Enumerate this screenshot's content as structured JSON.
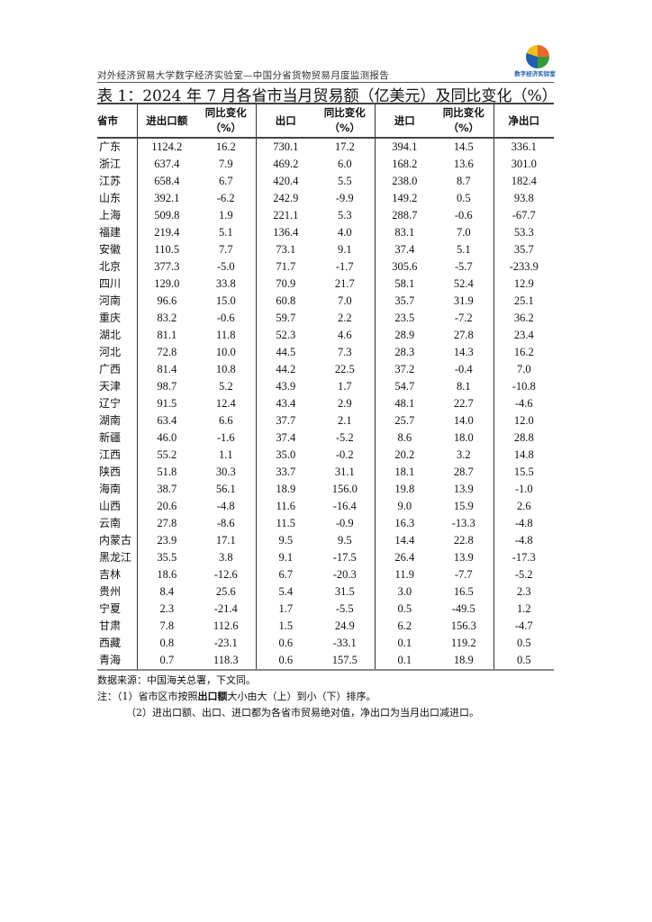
{
  "header": {
    "org": "对外经济贸易大学数字经济实验室—中国分省货物贸易月度监测报告",
    "logo_text": "数字经济实验室"
  },
  "title": "表 1：2024 年 7 月各省市当月贸易额（亿美元）及同比变化（%）",
  "table": {
    "columns": [
      "省市",
      "进出口额",
      "同比变化（%）",
      "出口",
      "同比变化（%）",
      "进口",
      "同比变化（%）",
      "净出口"
    ],
    "rows": [
      [
        "广东",
        "1124.2",
        "16.2",
        "730.1",
        "17.2",
        "394.1",
        "14.5",
        "336.1"
      ],
      [
        "浙江",
        "637.4",
        "7.9",
        "469.2",
        "6.0",
        "168.2",
        "13.6",
        "301.0"
      ],
      [
        "江苏",
        "658.4",
        "6.7",
        "420.4",
        "5.5",
        "238.0",
        "8.7",
        "182.4"
      ],
      [
        "山东",
        "392.1",
        "-6.2",
        "242.9",
        "-9.9",
        "149.2",
        "0.5",
        "93.8"
      ],
      [
        "上海",
        "509.8",
        "1.9",
        "221.1",
        "5.3",
        "288.7",
        "-0.6",
        "-67.7"
      ],
      [
        "福建",
        "219.4",
        "5.1",
        "136.4",
        "4.0",
        "83.1",
        "7.0",
        "53.3"
      ],
      [
        "安徽",
        "110.5",
        "7.7",
        "73.1",
        "9.1",
        "37.4",
        "5.1",
        "35.7"
      ],
      [
        "北京",
        "377.3",
        "-5.0",
        "71.7",
        "-1.7",
        "305.6",
        "-5.7",
        "-233.9"
      ],
      [
        "四川",
        "129.0",
        "33.8",
        "70.9",
        "21.7",
        "58.1",
        "52.4",
        "12.9"
      ],
      [
        "河南",
        "96.6",
        "15.0",
        "60.8",
        "7.0",
        "35.7",
        "31.9",
        "25.1"
      ],
      [
        "重庆",
        "83.2",
        "-0.6",
        "59.7",
        "2.2",
        "23.5",
        "-7.2",
        "36.2"
      ],
      [
        "湖北",
        "81.1",
        "11.8",
        "52.3",
        "4.6",
        "28.9",
        "27.8",
        "23.4"
      ],
      [
        "河北",
        "72.8",
        "10.0",
        "44.5",
        "7.3",
        "28.3",
        "14.3",
        "16.2"
      ],
      [
        "广西",
        "81.4",
        "10.8",
        "44.2",
        "22.5",
        "37.2",
        "-0.4",
        "7.0"
      ],
      [
        "天津",
        "98.7",
        "5.2",
        "43.9",
        "1.7",
        "54.7",
        "8.1",
        "-10.8"
      ],
      [
        "辽宁",
        "91.5",
        "12.4",
        "43.4",
        "2.9",
        "48.1",
        "22.7",
        "-4.6"
      ],
      [
        "湖南",
        "63.4",
        "6.6",
        "37.7",
        "2.1",
        "25.7",
        "14.0",
        "12.0"
      ],
      [
        "新疆",
        "46.0",
        "-1.6",
        "37.4",
        "-5.2",
        "8.6",
        "18.0",
        "28.8"
      ],
      [
        "江西",
        "55.2",
        "1.1",
        "35.0",
        "-0.2",
        "20.2",
        "3.2",
        "14.8"
      ],
      [
        "陕西",
        "51.8",
        "30.3",
        "33.7",
        "31.1",
        "18.1",
        "28.7",
        "15.5"
      ],
      [
        "海南",
        "38.7",
        "56.1",
        "18.9",
        "156.0",
        "19.8",
        "13.9",
        "-1.0"
      ],
      [
        "山西",
        "20.6",
        "-4.8",
        "11.6",
        "-16.4",
        "9.0",
        "15.9",
        "2.6"
      ],
      [
        "云南",
        "27.8",
        "-8.6",
        "11.5",
        "-0.9",
        "16.3",
        "-13.3",
        "-4.8"
      ],
      [
        "内蒙古",
        "23.9",
        "17.1",
        "9.5",
        "9.5",
        "14.4",
        "22.8",
        "-4.8"
      ],
      [
        "黑龙江",
        "35.5",
        "3.8",
        "9.1",
        "-17.5",
        "26.4",
        "13.9",
        "-17.3"
      ],
      [
        "吉林",
        "18.6",
        "-12.6",
        "6.7",
        "-20.3",
        "11.9",
        "-7.7",
        "-5.2"
      ],
      [
        "贵州",
        "8.4",
        "25.6",
        "5.4",
        "31.5",
        "3.0",
        "16.5",
        "2.3"
      ],
      [
        "宁夏",
        "2.3",
        "-21.4",
        "1.7",
        "-5.5",
        "0.5",
        "-49.5",
        "1.2"
      ],
      [
        "甘肃",
        "7.8",
        "112.6",
        "1.5",
        "24.9",
        "6.2",
        "156.3",
        "-4.7"
      ],
      [
        "西藏",
        "0.8",
        "-23.1",
        "0.6",
        "-33.1",
        "0.1",
        "119.2",
        "0.5"
      ],
      [
        "青海",
        "0.7",
        "118.3",
        "0.6",
        "157.5",
        "0.1",
        "18.9",
        "0.5"
      ]
    ]
  },
  "notes": {
    "source": "数据来源：中国海关总署，下文同。",
    "note1_prefix": "注：（1）省市区市按照",
    "note1_bold": "出口额",
    "note1_suffix": "大小由大（上）到小（下）排序。",
    "note2": "（2）进出口额、出口、进口都为各省市贸易绝对值，净出口为当月出口减进口。"
  }
}
